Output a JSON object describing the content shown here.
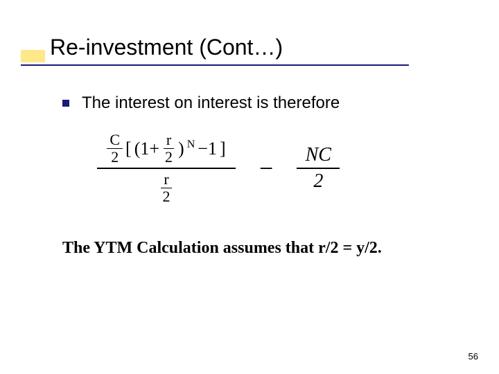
{
  "title": "Re-investment (Cont…)",
  "bullet_text": "The interest on interest is therefore",
  "formula": {
    "left_frac_top": "C",
    "left_frac_bot": "2",
    "bracket_open": "[",
    "one_plus": "(1+",
    "inner_frac_top": "r",
    "inner_frac_bot": "2",
    "close_paren": ")",
    "exponent": "N",
    "minus1": "−1",
    "bracket_close": "]",
    "denom_frac_top": "r",
    "denom_frac_bot": "2",
    "big_minus": "−",
    "right_top": "NC",
    "right_bot": "2"
  },
  "bottom_text": "The YTM Calculation assumes that r/2 = y/2.",
  "page_number": "56",
  "colors": {
    "accent_yellow": "#fee88a",
    "underline_blue": "#1a1a7a",
    "bullet_blue": "#1a1a7a"
  }
}
